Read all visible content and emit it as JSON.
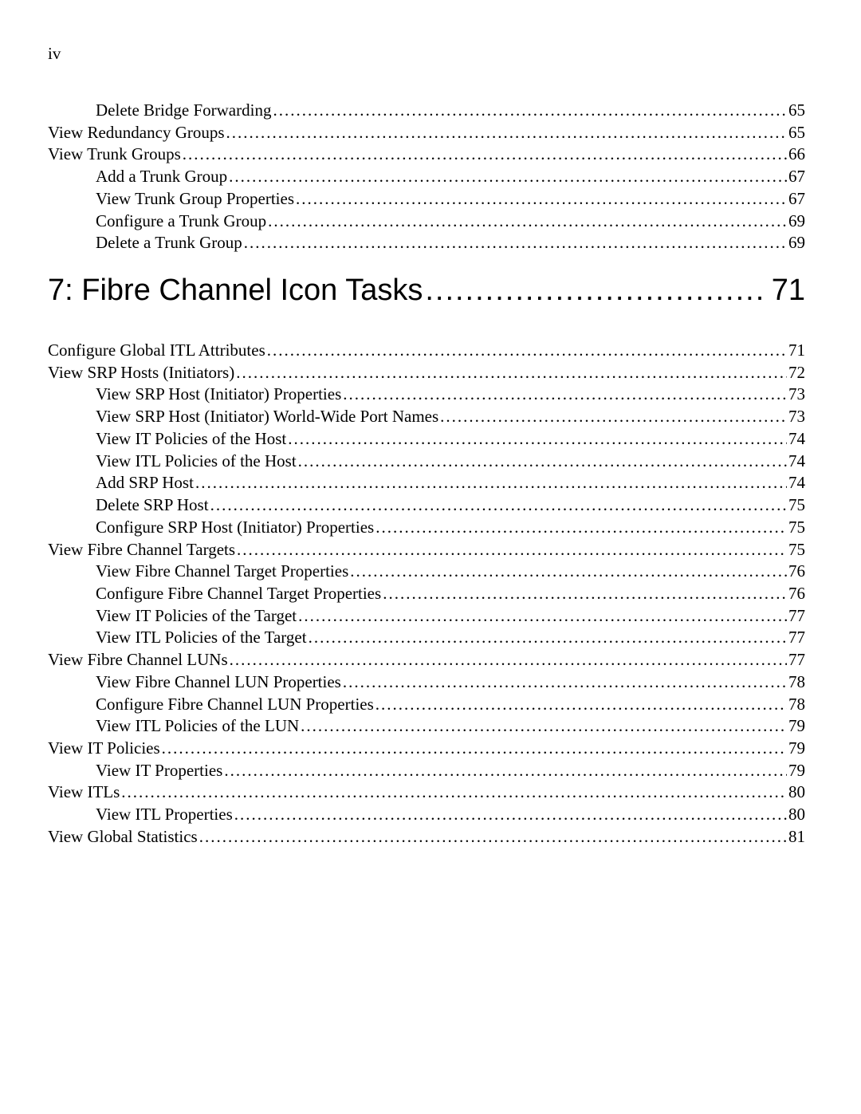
{
  "page_label": "iv",
  "pre_chapter_entries": [
    {
      "level": 1,
      "label": "Delete Bridge Forwarding",
      "page": "65"
    },
    {
      "level": 0,
      "label": "View Redundancy Groups",
      "page": "65"
    },
    {
      "level": 0,
      "label": "View Trunk Groups",
      "page": "66"
    },
    {
      "level": 1,
      "label": "Add a Trunk Group",
      "page": "67"
    },
    {
      "level": 1,
      "label": "View Trunk Group Properties",
      "page": "67"
    },
    {
      "level": 1,
      "label": "Configure a Trunk Group",
      "page": "69"
    },
    {
      "level": 1,
      "label": "Delete a Trunk Group",
      "page": "69"
    }
  ],
  "chapter": {
    "label": "7: Fibre Channel Icon Tasks",
    "page": "71"
  },
  "post_chapter_entries": [
    {
      "level": 0,
      "label": "Configure Global ITL Attributes",
      "page": "71"
    },
    {
      "level": 0,
      "label": "View SRP Hosts (Initiators)",
      "page": "72"
    },
    {
      "level": 1,
      "label": "View SRP Host (Initiator) Properties",
      "page": "73"
    },
    {
      "level": 1,
      "label": "View SRP Host (Initiator) World-Wide Port Names",
      "page": "73"
    },
    {
      "level": 1,
      "label": "View IT Policies of the Host",
      "page": "74"
    },
    {
      "level": 1,
      "label": "View ITL Policies of the Host",
      "page": "74"
    },
    {
      "level": 1,
      "label": "Add SRP Host",
      "page": "74"
    },
    {
      "level": 1,
      "label": "Delete SRP Host",
      "page": "75"
    },
    {
      "level": 1,
      "label": "Configure SRP Host (Initiator) Properties",
      "page": "75"
    },
    {
      "level": 0,
      "label": "View Fibre Channel Targets",
      "page": "75"
    },
    {
      "level": 1,
      "label": "View Fibre Channel Target Properties",
      "page": "76"
    },
    {
      "level": 1,
      "label": "Configure Fibre Channel Target Properties",
      "page": "76"
    },
    {
      "level": 1,
      "label": "View IT Policies of the Target",
      "page": "77"
    },
    {
      "level": 1,
      "label": "View ITL Policies of the Target",
      "page": "77"
    },
    {
      "level": 0,
      "label": "View Fibre Channel LUNs",
      "page": "77"
    },
    {
      "level": 1,
      "label": "View Fibre Channel LUN Properties",
      "page": "78"
    },
    {
      "level": 1,
      "label": "Configure Fibre Channel LUN Properties",
      "page": "78"
    },
    {
      "level": 1,
      "label": "View ITL Policies of the LUN",
      "page": "79"
    },
    {
      "level": 0,
      "label": "View IT Policies",
      "page": "79"
    },
    {
      "level": 1,
      "label": "View IT Properties",
      "page": "79"
    },
    {
      "level": 0,
      "label": "View ITLs",
      "page": "80"
    },
    {
      "level": 1,
      "label": "View ITL Properties",
      "page": "80"
    },
    {
      "level": 0,
      "label": "View Global Statistics",
      "page": "81"
    }
  ]
}
